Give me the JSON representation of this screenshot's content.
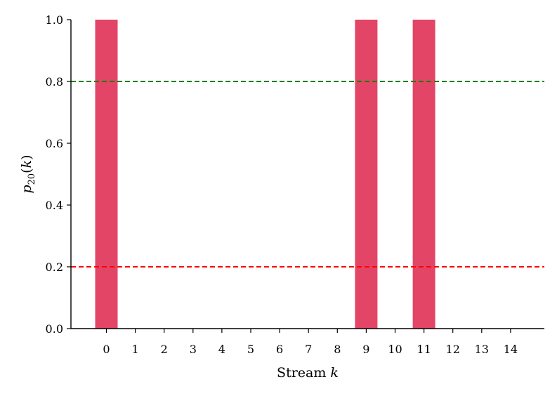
{
  "chart_data": {
    "type": "bar",
    "categories": [
      "0",
      "1",
      "2",
      "3",
      "4",
      "5",
      "6",
      "7",
      "8",
      "9",
      "10",
      "11",
      "12",
      "13",
      "14"
    ],
    "values": [
      1,
      0,
      0,
      0,
      0,
      0,
      0,
      0,
      0,
      1,
      0,
      1,
      0,
      0,
      0
    ],
    "xlabel_text": "Stream ",
    "xlabel_var": "k",
    "ylabel_var": "p",
    "ylabel_sub": "20",
    "ylabel_arg": "k",
    "ylim": [
      0,
      1.0
    ],
    "yticks": [
      "0.0",
      "0.2",
      "0.4",
      "0.6",
      "0.8",
      "1.0"
    ],
    "reference_lines": [
      {
        "y": 0.8,
        "color": "#008000",
        "style": "dashed"
      },
      {
        "y": 0.2,
        "color": "#ff0000",
        "style": "dashed"
      }
    ],
    "bar_color": "#e34566",
    "grid": false
  }
}
